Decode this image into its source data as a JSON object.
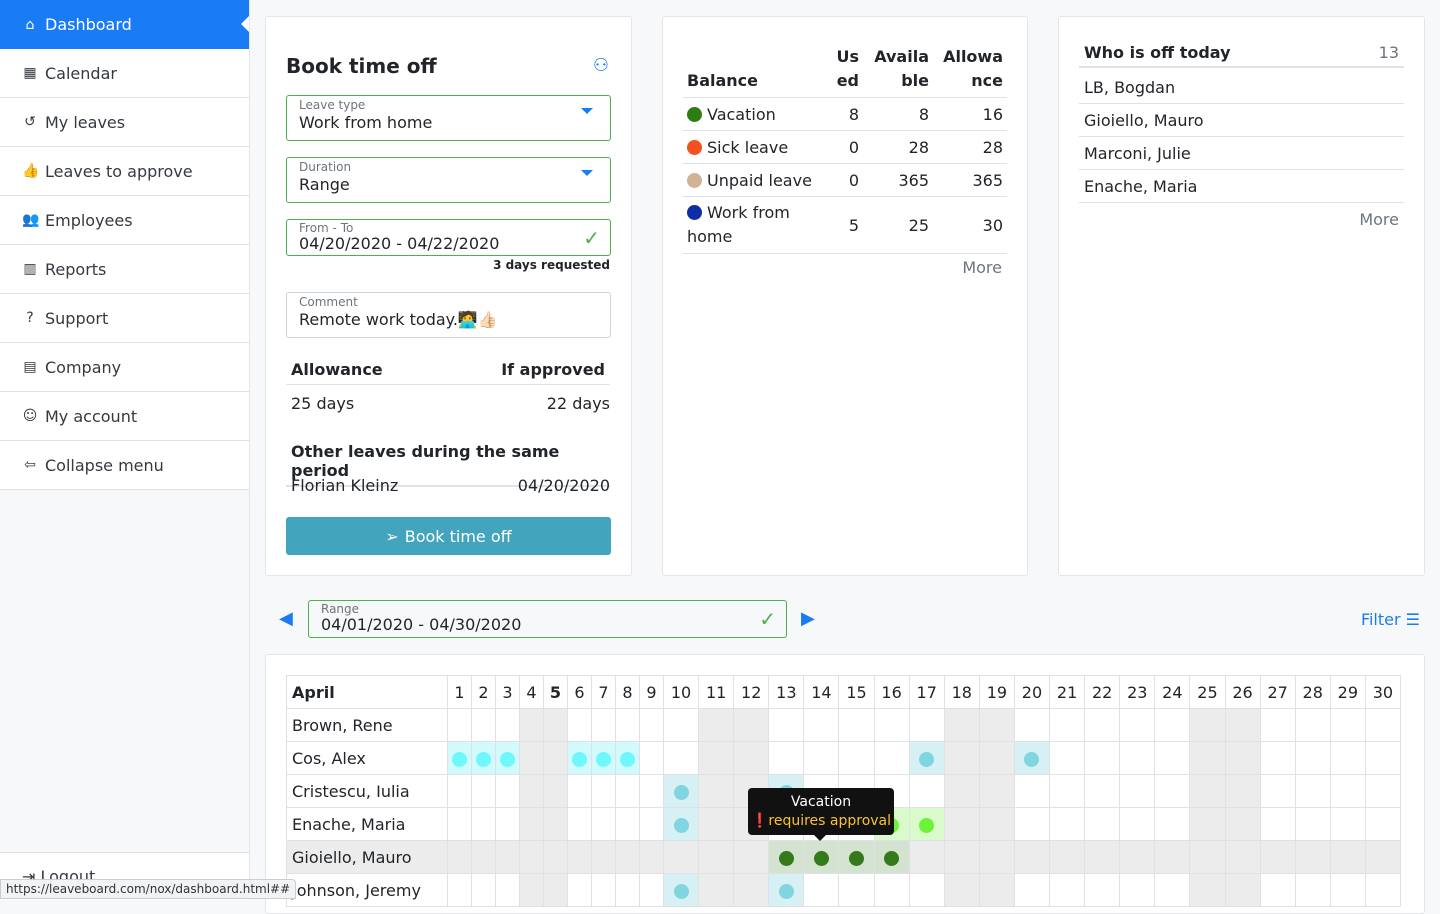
{
  "sidebar": {
    "items": [
      {
        "label": "Dashboard",
        "icon": "home-icon",
        "glyph": "⌂",
        "active": true
      },
      {
        "label": "Calendar",
        "icon": "calendar-icon",
        "glyph": "▦"
      },
      {
        "label": "My leaves",
        "icon": "history-icon",
        "glyph": "↺"
      },
      {
        "label": "Leaves to approve",
        "icon": "thumbs-up-icon",
        "glyph": "👍"
      },
      {
        "label": "Employees",
        "icon": "users-icon",
        "glyph": "👥"
      },
      {
        "label": "Reports",
        "icon": "chart-bar-icon",
        "glyph": "▥"
      },
      {
        "label": "Support",
        "icon": "question-circle-icon",
        "glyph": "?"
      },
      {
        "label": "Company",
        "icon": "building-icon",
        "glyph": "▤"
      },
      {
        "label": "My account",
        "icon": "user-icon",
        "glyph": "☺"
      },
      {
        "label": "Collapse menu",
        "icon": "arrow-circle-left-icon",
        "glyph": "⇦"
      }
    ],
    "logout": "Logout"
  },
  "status_url": "https://leaveboard.com/nox/dashboard.html##",
  "book": {
    "title": "Book time off",
    "leave_type_label": "Leave type",
    "leave_type": "Work from home",
    "duration_label": "Duration",
    "duration": "Range",
    "fromto_label": "From - To",
    "fromto": "04/20/2020 - 04/22/2020",
    "requested": "3 days requested",
    "comment_label": "Comment",
    "comment": "Remote work today.🧑‍💻👍🏻",
    "allowance_h": "Allowance",
    "if_approved_h": "If approved",
    "allowance": "25 days",
    "if_approved": "22 days",
    "other_h": "Other leaves during the same period",
    "other": [
      {
        "name": "Florian Kleinz",
        "date": "04/20/2020"
      }
    ],
    "button": "Book time off"
  },
  "balance": {
    "headers": [
      "Balance",
      "Used",
      "Available",
      "Allowance"
    ],
    "rows": [
      {
        "name": "Vacation",
        "color": "#2e7d14",
        "used": "8",
        "available": "8",
        "allowance": "16"
      },
      {
        "name": "Sick leave",
        "color": "#f4511e",
        "used": "0",
        "available": "28",
        "allowance": "28"
      },
      {
        "name": "Unpaid leave",
        "color": "#d2b295",
        "used": "0",
        "available": "365",
        "allowance": "365"
      },
      {
        "name": "Work from home",
        "color": "#0d2ea8",
        "used": "5",
        "available": "25",
        "allowance": "30"
      }
    ],
    "more": "More"
  },
  "who": {
    "title": "Who is off today",
    "count": "13",
    "names": [
      "LB, Bogdan",
      "Gioiello, Mauro",
      "Marconi, Julie",
      "Enache, Maria"
    ],
    "more": "More"
  },
  "range": {
    "label": "Range",
    "value": "04/01/2020 - 04/30/2020",
    "filter": "Filter"
  },
  "calendar": {
    "month": "April",
    "days": [
      "1",
      "2",
      "3",
      "4",
      "5",
      "6",
      "7",
      "8",
      "9",
      "10",
      "11",
      "12",
      "13",
      "14",
      "15",
      "16",
      "17",
      "18",
      "19",
      "20",
      "21",
      "22",
      "23",
      "24",
      "25",
      "26",
      "27",
      "28",
      "29",
      "30"
    ],
    "today": 5,
    "weekends": [
      4,
      5,
      11,
      12,
      18,
      19,
      25,
      26
    ],
    "colors": {
      "cyan": [
        "#6ef8fb",
        "#d2fafc"
      ],
      "teal": [
        "#80d5e0",
        "#d6f0f4"
      ],
      "lime": [
        "#6cf236",
        "#d9fbcc"
      ],
      "green": [
        "#347a1c",
        "#d4e2d0"
      ]
    },
    "employees": [
      {
        "name": "Brown, Rene",
        "leaves": {}
      },
      {
        "name": "Cos, Alex",
        "leaves": {
          "1": "cyan",
          "2": "cyan",
          "3": "cyan",
          "6": "cyan",
          "7": "cyan",
          "8": "cyan",
          "17": "teal",
          "20": "teal"
        }
      },
      {
        "name": "Cristescu, Iulia",
        "leaves": {
          "10": "teal",
          "13": "teal"
        }
      },
      {
        "name": "Enache, Maria",
        "leaves": {
          "10": "teal",
          "16": "lime",
          "17": "lime"
        }
      },
      {
        "name": "Gioiello, Mauro",
        "hover": true,
        "leaves": {
          "13": "green",
          "14": "green",
          "15": "green",
          "16": "green"
        }
      },
      {
        "name": "Johnson, Jeremy",
        "leaves": {
          "10": "teal",
          "13": "teal"
        }
      }
    ],
    "tooltip": {
      "title": "Vacation",
      "note": "requires approval"
    }
  }
}
